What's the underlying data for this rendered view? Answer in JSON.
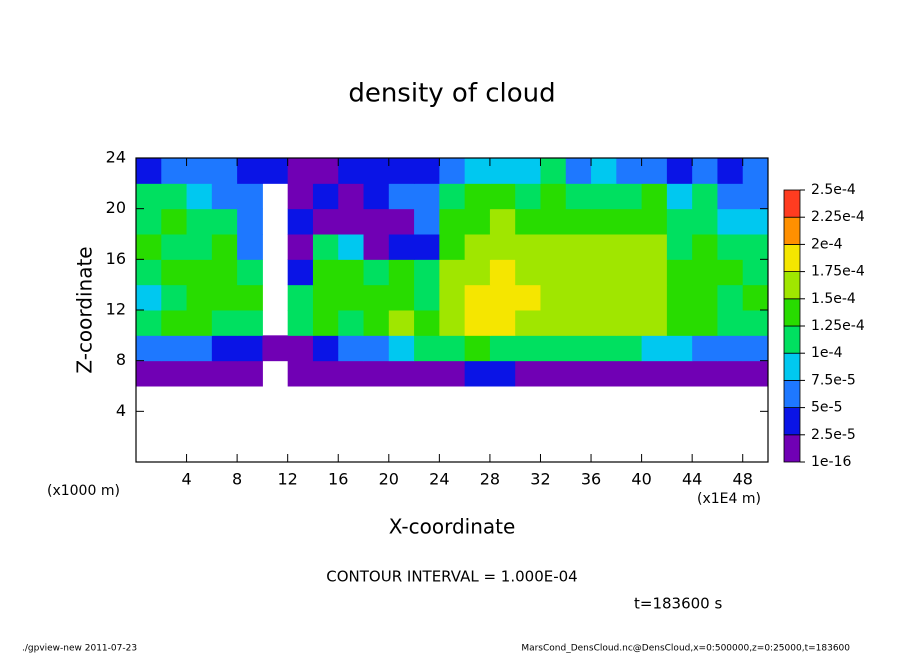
{
  "chart_data": {
    "type": "heatmap",
    "title": "density of cloud",
    "x_label": "X-coordinate",
    "y_label": "Z-coordinate",
    "x_unit": "(x1000 m)",
    "x_scale_note": "(x1E4 m)",
    "contour_note": "CONTOUR INTERVAL = 1.000E-04",
    "time_note": "t=183600 s",
    "footer_left": "./gpview-new  2011-07-23",
    "footer_right": "MarsCond_DensCloud.nc@DensCloud,x=0:500000,z=0:25000,t=183600",
    "xlim": [
      0,
      50
    ],
    "ylim": [
      0,
      24
    ],
    "xticks": [
      4,
      8,
      12,
      16,
      20,
      24,
      28,
      32,
      36,
      40,
      44,
      48
    ],
    "yticks": [
      4,
      8,
      12,
      16,
      20,
      24
    ],
    "x_edges": [
      0,
      2,
      4,
      6,
      8,
      10,
      12,
      14,
      16,
      18,
      20,
      22,
      24,
      26,
      28,
      30,
      32,
      34,
      36,
      38,
      40,
      42,
      44,
      46,
      48,
      50
    ],
    "y_edges": [
      6,
      8,
      10,
      12,
      14,
      16,
      18,
      20,
      22,
      24
    ],
    "z": [
      [
        1e-05,
        1e-05,
        1e-05,
        1e-05,
        1e-05,
        null,
        1e-05,
        1e-05,
        1e-05,
        1e-05,
        1e-05,
        2e-05,
        1e-05,
        3e-05,
        3e-05,
        2e-05,
        2e-05,
        2e-05,
        2e-05,
        2e-05,
        1e-05,
        1e-05,
        1e-05,
        1e-05,
        1e-05
      ],
      [
        6e-05,
        7e-05,
        5e-05,
        4e-05,
        3e-05,
        1e-05,
        2e-05,
        4e-05,
        5e-05,
        6e-05,
        8e-05,
        0.0001,
        0.00012,
        0.00013,
        0.00012,
        0.00011,
        0.00012,
        0.00011,
        0.00011,
        0.0001,
        8e-05,
        9e-05,
        7e-05,
        6e-05,
        5e-05
      ],
      [
        0.00012,
        0.00013,
        0.00014,
        0.00012,
        0.00011,
        null,
        0.00011,
        0.00013,
        0.00011,
        0.00014,
        0.00015,
        0.00013,
        0.00016,
        0.00018,
        0.00018,
        0.00017,
        0.00016,
        0.00016,
        0.00015,
        0.00015,
        0.00015,
        0.00014,
        0.00013,
        0.00012,
        0.00012
      ],
      [
        8e-05,
        0.00012,
        0.00014,
        0.00013,
        0.00014,
        null,
        0.00012,
        0.00014,
        0.00013,
        0.00013,
        0.00014,
        0.00012,
        0.00017,
        0.00019,
        0.00019,
        0.00018,
        0.00017,
        0.00017,
        0.00016,
        0.00016,
        0.00015,
        0.00014,
        0.00014,
        0.00012,
        0.00013
      ],
      [
        0.00012,
        0.00013,
        0.00014,
        0.00013,
        0.00012,
        null,
        4e-05,
        0.00013,
        0.00014,
        0.00012,
        0.00013,
        0.00011,
        0.00016,
        0.00017,
        0.00018,
        0.00017,
        0.00016,
        0.00016,
        0.00016,
        0.00016,
        0.00015,
        0.00013,
        0.00014,
        0.00013,
        0.00012
      ],
      [
        0.00013,
        0.00012,
        0.00012,
        0.00013,
        6e-05,
        null,
        2e-05,
        0.00012,
        8e-05,
        2e-05,
        3e-05,
        3e-05,
        0.00014,
        0.00016,
        0.00017,
        0.00015,
        0.00015,
        0.00016,
        0.00015,
        0.00015,
        0.00015,
        0.00012,
        0.00013,
        0.00012,
        0.0001
      ],
      [
        0.00012,
        0.00013,
        0.00011,
        0.00012,
        6e-05,
        null,
        3e-05,
        2e-05,
        2e-05,
        2e-05,
        2e-05,
        5e-05,
        0.00013,
        0.00014,
        0.00016,
        0.00014,
        0.00014,
        0.00013,
        0.00014,
        0.00014,
        0.00014,
        0.00012,
        0.00011,
        9e-05,
        8e-05
      ],
      [
        0.00011,
        0.00012,
        8e-05,
        6e-05,
        5e-05,
        null,
        2e-05,
        3e-05,
        2e-05,
        3e-05,
        5e-05,
        7e-05,
        0.00012,
        0.00013,
        0.00014,
        0.00012,
        0.00013,
        0.00012,
        0.00011,
        0.00012,
        0.00013,
        9e-05,
        0.0001,
        6e-05,
        5e-05
      ],
      [
        4e-05,
        5e-05,
        6e-05,
        5e-05,
        4e-05,
        3e-05,
        2e-05,
        2e-05,
        3e-05,
        3e-05,
        4e-05,
        4e-05,
        5e-05,
        8e-05,
        8e-05,
        9e-05,
        0.00011,
        6e-05,
        8e-05,
        5e-05,
        6e-05,
        4e-05,
        5e-05,
        4e-05,
        5e-05
      ]
    ],
    "colorbar": {
      "levels": [
        {
          "value": 1e-16,
          "label": "1e-16"
        },
        {
          "value": 2.5e-05,
          "label": "2.5e-5"
        },
        {
          "value": 5e-05,
          "label": "5e-5"
        },
        {
          "value": 7.5e-05,
          "label": "7.5e-5"
        },
        {
          "value": 0.0001,
          "label": "1e-4"
        },
        {
          "value": 0.000125,
          "label": "1.25e-4"
        },
        {
          "value": 0.00015,
          "label": "1.5e-4"
        },
        {
          "value": 0.000175,
          "label": "1.75e-4"
        },
        {
          "value": 0.0002,
          "label": "2e-4"
        },
        {
          "value": 0.000225,
          "label": "2.25e-4"
        },
        {
          "value": 0.00025,
          "label": "2.5e-4"
        }
      ],
      "colors": [
        "#7000b4",
        "#0a14e6",
        "#1e78ff",
        "#00c8f0",
        "#00e060",
        "#28dc00",
        "#a0e600",
        "#f5e600",
        "#ff9000",
        "#ff3c20"
      ]
    }
  }
}
